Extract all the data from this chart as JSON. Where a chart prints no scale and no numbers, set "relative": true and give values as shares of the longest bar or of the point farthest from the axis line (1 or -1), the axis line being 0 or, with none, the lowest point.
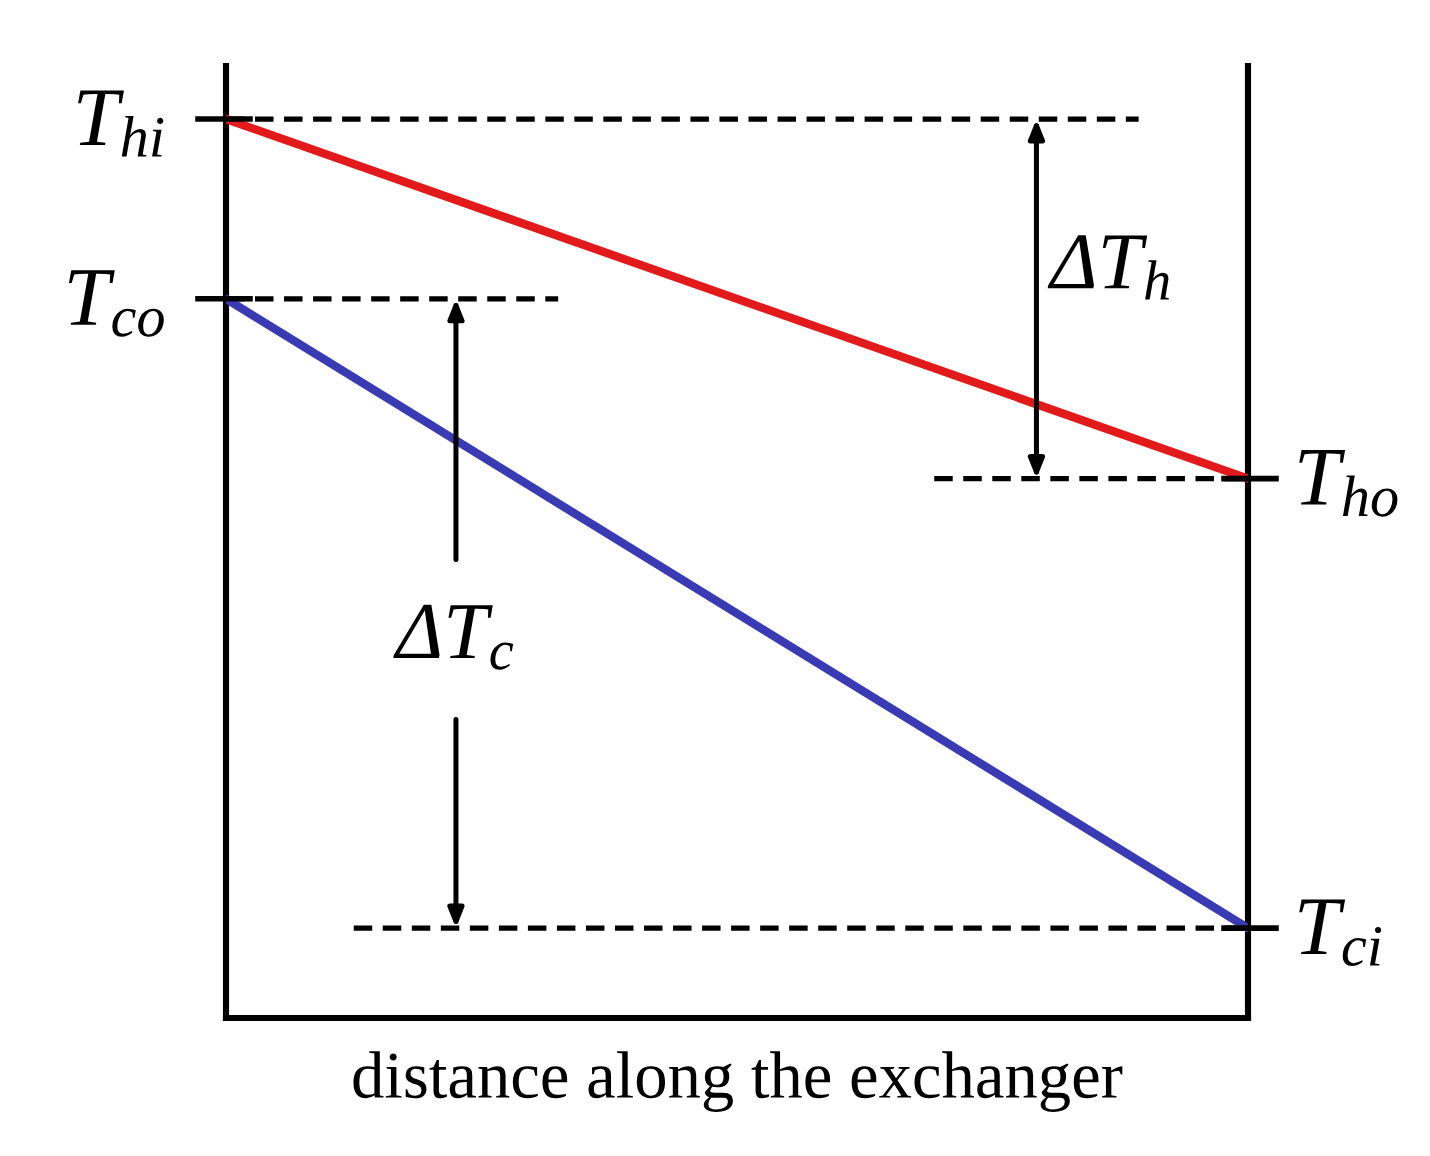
{
  "chart_data": {
    "type": "line",
    "xlabel": "distance along the exchanger",
    "categories": [
      null,
      null
    ],
    "relative": true,
    "series": [
      {
        "color": "#e31a1c",
        "values": [
          1,
          0.6
        ]
      },
      {
        "color": "#3a3ab4",
        "values": [
          0.8,
          0.1
        ]
      }
    ],
    "ref_lines": [
      {
        "axis": "y",
        "value": 1,
        "label": "T$_{hi}$",
        "line_style": "dashed",
        "color": "#000000"
      },
      {
        "axis": "y",
        "value": 0.8,
        "label": "T$_{co}$",
        "line_style": "dashed",
        "color": "#000000"
      },
      {
        "axis": "y",
        "value": 0.6,
        "label": "T$_{ho}$",
        "line_style": "dashed",
        "color": "#000000"
      },
      {
        "axis": "y",
        "value": 0.1,
        "label": "T$_{ci}$",
        "line_style": "dashed",
        "color": "#000000"
      }
    ],
    "annotations": [
      "ΔT$_{h}$",
      "ΔT$_{c}$"
    ]
  }
}
